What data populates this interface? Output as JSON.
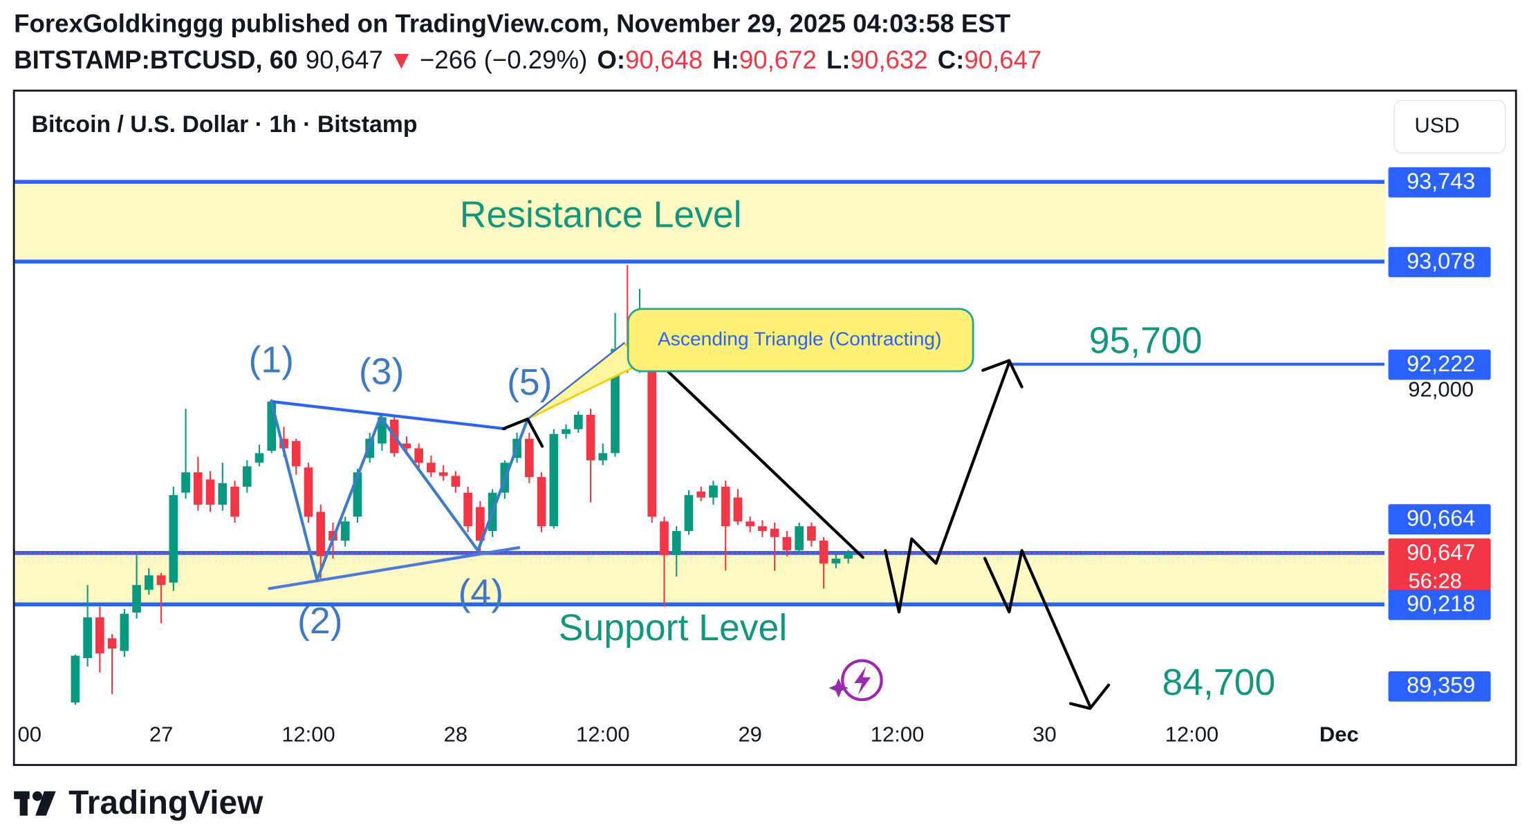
{
  "header": {
    "publisher": "ForexGoldkinggg published on TradingView.com, November 29, 2025 04:03:58 EST",
    "symbol": "BITSTAMP:BTCUSD, 60",
    "last": "90,647",
    "arrow": "▼",
    "change": "−266 (−0.29%)",
    "o_label": "O:",
    "o": "90,648",
    "h_label": "H:",
    "h": "90,672",
    "l_label": "L:",
    "l": "90,632",
    "c_label": "C:",
    "c": "90,647"
  },
  "chart_data": {
    "type": "candlestick",
    "title": "Bitcoin / U.S. Dollar · 1h · Bitstamp",
    "currency": "USD",
    "up_color": "#089981",
    "down_color": "#f23645",
    "x": [
      -7,
      -6,
      -5,
      -4,
      -3,
      -2,
      -1,
      0,
      1,
      2,
      3,
      4,
      5,
      6,
      7,
      8,
      9,
      10,
      11,
      12,
      13,
      14,
      15,
      16,
      17,
      18,
      19,
      20,
      21,
      22,
      23,
      24,
      25,
      26,
      27,
      28,
      29,
      30,
      31,
      32,
      33,
      34,
      35,
      36,
      37,
      38,
      39,
      40,
      41,
      42,
      43,
      44,
      45,
      46,
      47,
      48,
      49,
      50,
      51,
      52,
      53,
      54,
      55,
      56
    ],
    "open": [
      89400,
      89770,
      90110,
      89935,
      89830,
      90150,
      90340,
      90460,
      90400,
      91150,
      91320,
      91260,
      91050,
      91200,
      91200,
      91400,
      91500,
      91600,
      91580,
      91360,
      90990,
      90830,
      90750,
      90950,
      91440,
      91560,
      91760,
      91560,
      91520,
      91400,
      91320,
      91290,
      91150,
      91030,
      90830,
      91150,
      91440,
      91600,
      91280,
      90870,
      91640,
      91680,
      91800,
      91420,
      91480,
      92350,
      92250,
      92370,
      90910,
      90630,
      90830,
      91160,
      91110,
      91200,
      91110,
      90910,
      90870,
      90850,
      90780,
      90670,
      90870,
      90750,
      90560,
      90600
    ],
    "high": [
      89800,
      90380,
      90200,
      89970,
      90180,
      90630,
      90520,
      90480,
      91200,
      91850,
      91450,
      91330,
      91400,
      91250,
      91420,
      91550,
      91930,
      91700,
      91600,
      91400,
      91050,
      90900,
      90950,
      91350,
      91650,
      91800,
      91800,
      91620,
      91560,
      91460,
      91380,
      91330,
      91200,
      91080,
      91180,
      91420,
      91650,
      91650,
      91320,
      91680,
      91720,
      91830,
      91850,
      91560,
      92650,
      93050,
      92850,
      92400,
      90950,
      90870,
      91170,
      91200,
      91250,
      91250,
      91180,
      90950,
      90920,
      90900,
      90830,
      90900,
      90900,
      90780,
      90650,
      90672
    ],
    "low": [
      89380,
      89700,
      89650,
      89470,
      89780,
      90100,
      90300,
      90060,
      90330,
      91100,
      91000,
      90990,
      91000,
      90900,
      91150,
      91370,
      91480,
      91450,
      91300,
      90900,
      90420,
      90600,
      90700,
      90900,
      91400,
      91500,
      91450,
      91480,
      91350,
      91280,
      91250,
      91150,
      90820,
      90640,
      90780,
      91100,
      91400,
      91230,
      90820,
      90850,
      91600,
      91650,
      91070,
      91380,
      91450,
      92150,
      92150,
      90900,
      90200,
      90450,
      90800,
      91080,
      91050,
      90500,
      90880,
      90820,
      90780,
      90500,
      90620,
      90640,
      90700,
      90350,
      90520,
      90560
    ],
    "close": [
      89790,
      90110,
      89810,
      89850,
      90140,
      90380,
      90460,
      90380,
      91130,
      91320,
      91050,
      91050,
      91230,
      90950,
      91370,
      91480,
      91910,
      91520,
      91370,
      90950,
      90620,
      90750,
      90910,
      91320,
      91600,
      91780,
      91480,
      91520,
      91400,
      91320,
      91290,
      91200,
      90870,
      90750,
      91150,
      91400,
      91600,
      91280,
      90870,
      91640,
      91680,
      91800,
      91420,
      91480,
      92350,
      92250,
      92370,
      90950,
      90630,
      90830,
      91130,
      91110,
      91210,
      90870,
      90910,
      90870,
      90830,
      90780,
      90670,
      90870,
      90750,
      90560,
      90600,
      90647
    ],
    "xlim": [
      -12,
      99.7
    ],
    "xticks": [
      {
        "value": -12,
        "label": "00"
      },
      {
        "value": 0,
        "label": "27"
      },
      {
        "value": 12,
        "label": "12:00"
      },
      {
        "value": 24,
        "label": "28"
      },
      {
        "value": 36,
        "label": "12:00"
      },
      {
        "value": 48,
        "label": "29"
      },
      {
        "value": 60,
        "label": "12:00"
      },
      {
        "value": 72,
        "label": "30"
      },
      {
        "value": 84,
        "label": "12:00"
      },
      {
        "value": 96,
        "label": "Dec"
      }
    ],
    "ylim": [
      89285,
      94488
    ],
    "yticks": [
      {
        "value": 92000,
        "label": "92,000"
      }
    ],
    "price_labels": [
      {
        "value": 93743,
        "label": "93,743"
      },
      {
        "value": 93078,
        "label": "93,078"
      },
      {
        "value": 92222,
        "label": "92,222"
      },
      {
        "value": 90664,
        "label": "90,664"
      },
      {
        "value": 90647,
        "label": "90,647"
      },
      {
        "value": 90218,
        "label": "90,218"
      },
      {
        "value": 89359,
        "label": "89,359"
      }
    ],
    "countdown": "56:28",
    "annotations": {
      "resistance": "Resistance Level",
      "support": "Support Level",
      "pattern": "Ascending Triangle (Contracting)",
      "w1": "(1)",
      "w2": "(2)",
      "w3": "(3)",
      "w4": "(4)",
      "w5": "(5)",
      "target_up": "95,700",
      "target_down": "84,700"
    }
  },
  "footer": {
    "brand": "TradingView"
  }
}
